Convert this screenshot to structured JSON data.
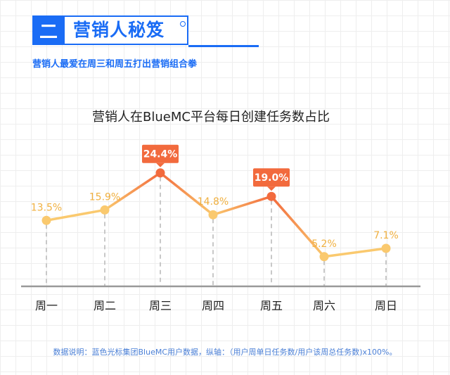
{
  "header": {
    "number": "二",
    "title": "营销人秘笈"
  },
  "subtitle": "营销人最爱在周三和周五打出营销组合拳",
  "footnote": "数据说明：蓝色光标集团BlueMC用户数据，纵轴：（用户周单日任务数/用户该周总任务数)x100%。",
  "colors": {
    "brand": "#1a6cf5",
    "normal_point": "#fac96e",
    "normal_label": "#f0b040",
    "highlight": "#f26a3d",
    "axis": "#999999",
    "dash": "#c8c8c8"
  },
  "chart_data": {
    "type": "line",
    "title": "营销人在BlueMC平台每日创建任务数占比",
    "categories": [
      "周一",
      "周二",
      "周三",
      "周四",
      "周五",
      "周六",
      "周日"
    ],
    "values": [
      13.5,
      15.9,
      24.4,
      14.8,
      19.0,
      5.2,
      7.1
    ],
    "labels": [
      "13.5%",
      "15.9%",
      "24.4%",
      "14.8%",
      "19.0%",
      "5.2%",
      "7.1%"
    ],
    "highlighted": [
      "周三",
      "周五"
    ],
    "ylim": [
      0,
      30
    ],
    "xlabel": "",
    "ylabel": "",
    "grid": false,
    "legend": "none"
  }
}
